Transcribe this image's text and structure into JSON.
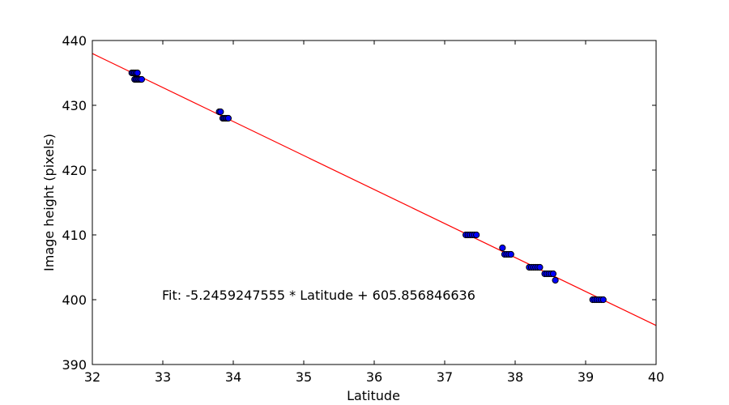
{
  "chart_data": {
    "type": "scatter",
    "xlabel": "Latitude",
    "ylabel": "Image height (pixels)",
    "xlim": [
      32,
      40
    ],
    "ylim": [
      390,
      440
    ],
    "xticks": [
      "32",
      "33",
      "34",
      "35",
      "36",
      "37",
      "38",
      "39",
      "40"
    ],
    "yticks": [
      "390",
      "400",
      "410",
      "420",
      "430",
      "440"
    ],
    "grid": false,
    "colors": {
      "points": "#0000ff",
      "point_edge": "#000000",
      "fit_line": "#ff0000"
    },
    "points": [
      [
        32.56,
        435
      ],
      [
        32.58,
        435
      ],
      [
        32.6,
        435
      ],
      [
        32.62,
        435
      ],
      [
        32.64,
        435
      ],
      [
        32.6,
        434
      ],
      [
        32.62,
        434
      ],
      [
        32.64,
        434
      ],
      [
        32.66,
        434
      ],
      [
        32.68,
        434
      ],
      [
        32.7,
        434
      ],
      [
        33.8,
        429
      ],
      [
        33.82,
        429
      ],
      [
        33.85,
        428
      ],
      [
        33.87,
        428
      ],
      [
        33.89,
        428
      ],
      [
        33.91,
        428
      ],
      [
        33.93,
        428
      ],
      [
        37.3,
        410
      ],
      [
        37.33,
        410
      ],
      [
        37.36,
        410
      ],
      [
        37.39,
        410
      ],
      [
        37.42,
        410
      ],
      [
        37.45,
        410
      ],
      [
        37.82,
        408
      ],
      [
        37.85,
        407
      ],
      [
        37.88,
        407
      ],
      [
        37.91,
        407
      ],
      [
        37.94,
        407
      ],
      [
        38.2,
        405
      ],
      [
        38.23,
        405
      ],
      [
        38.26,
        405
      ],
      [
        38.29,
        405
      ],
      [
        38.32,
        405
      ],
      [
        38.35,
        405
      ],
      [
        38.42,
        404
      ],
      [
        38.45,
        404
      ],
      [
        38.48,
        404
      ],
      [
        38.51,
        404
      ],
      [
        38.54,
        404
      ],
      [
        38.57,
        403
      ],
      [
        39.1,
        400
      ],
      [
        39.13,
        400
      ],
      [
        39.16,
        400
      ],
      [
        39.19,
        400
      ],
      [
        39.22,
        400
      ],
      [
        39.25,
        400
      ]
    ],
    "fit": {
      "slope": -5.2459247555,
      "intercept": 605.856846636
    },
    "annotation": "Fit: -5.2459247555 * Latitude + 605.856846636"
  }
}
